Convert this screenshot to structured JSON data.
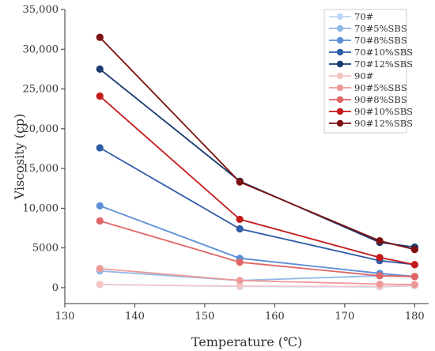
{
  "chart_data": {
    "type": "line",
    "xlabel": "Temperature (℃)",
    "ylabel": "Viscosity (cp)",
    "xlim": [
      130,
      182
    ],
    "ylim": [
      -2000,
      35000
    ],
    "xticks": [
      130,
      140,
      150,
      160,
      170,
      180
    ],
    "yticks": [
      0,
      5000,
      10000,
      15000,
      20000,
      25000,
      30000,
      35000
    ],
    "xtick_labels": [
      "130",
      "140",
      "150",
      "160",
      "170",
      "180"
    ],
    "ytick_labels": [
      "0",
      "5000",
      "10,000",
      "15,000",
      "20,000",
      "25,000",
      "30,000",
      "35,000"
    ],
    "x": [
      135,
      155,
      175,
      180
    ],
    "legend_position": "top-right",
    "series": [
      {
        "name": "70#",
        "color": "#bdd7f5",
        "values": [
          400,
          150,
          100,
          250
        ]
      },
      {
        "name": "70#5%SBS",
        "color": "#8fb8e8",
        "values": [
          2100,
          900,
          1500,
          1400
        ]
      },
      {
        "name": "70#8%SBS",
        "color": "#5b8fd6",
        "values": [
          10300,
          3700,
          1800,
          1400
        ]
      },
      {
        "name": "70#10%SBS",
        "color": "#2e5ca8",
        "values": [
          17600,
          7400,
          3400,
          2900
        ]
      },
      {
        "name": "70#12%SBS",
        "color": "#1a3a70",
        "values": [
          27500,
          13400,
          5700,
          5100
        ]
      },
      {
        "name": "90#",
        "color": "#f5c6c6",
        "values": [
          400,
          200,
          150,
          300
        ]
      },
      {
        "name": "90#5%SBS",
        "color": "#ef9a9a",
        "values": [
          2400,
          900,
          450,
          400
        ]
      },
      {
        "name": "90#8%SBS",
        "color": "#e06666",
        "values": [
          8400,
          3200,
          1500,
          1400
        ]
      },
      {
        "name": "90#10%SBS",
        "color": "#c41a1a",
        "values": [
          24100,
          8600,
          3800,
          2900
        ]
      },
      {
        "name": "90#12%SBS",
        "color": "#7d1010",
        "values": [
          31500,
          13300,
          5900,
          4800
        ]
      }
    ]
  }
}
